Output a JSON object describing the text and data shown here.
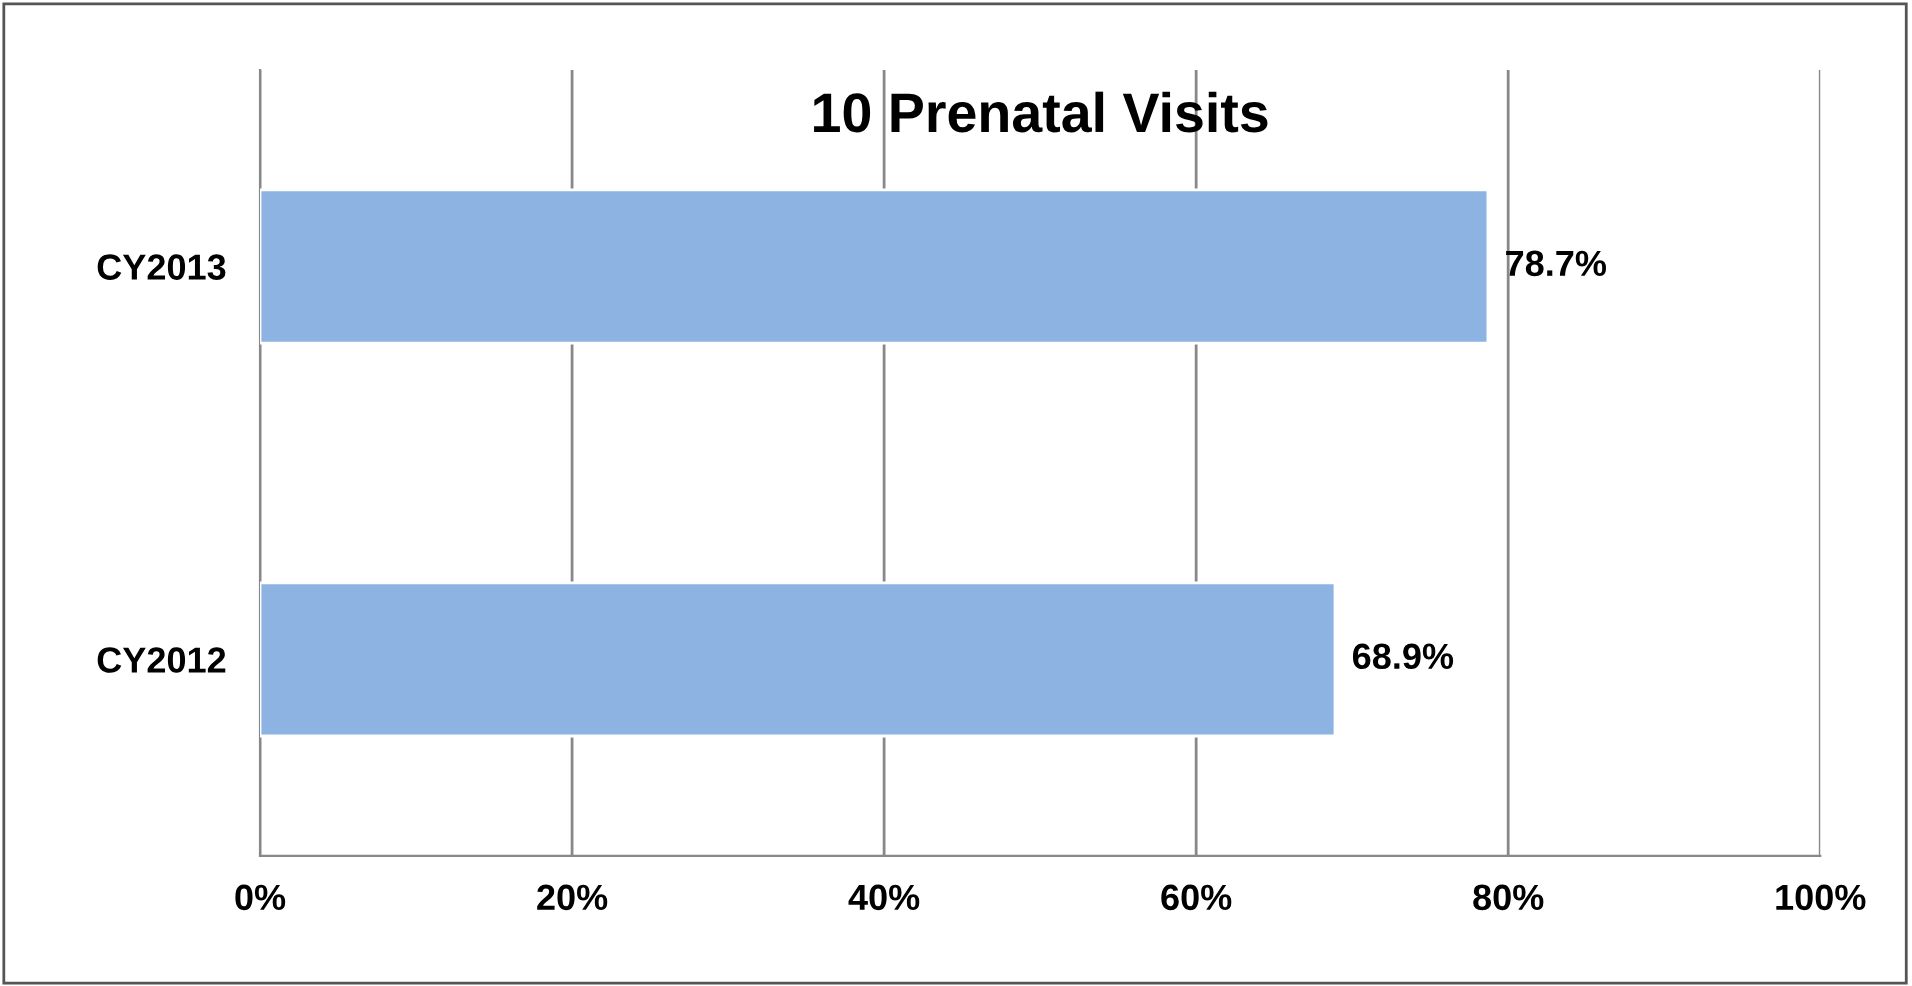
{
  "chart_data": {
    "type": "bar",
    "orientation": "horizontal",
    "title": "10 Prenatal Visits",
    "categories": [
      "CY2013",
      "CY2012"
    ],
    "values": [
      78.7,
      68.9
    ],
    "value_labels": [
      "78.7%",
      "68.9%"
    ],
    "color": "#8db3e2",
    "xlim": [
      0,
      100
    ],
    "xticks": [
      {
        "value": 0,
        "label": "0%"
      },
      {
        "value": 20,
        "label": "20%"
      },
      {
        "value": 40,
        "label": "40%"
      },
      {
        "value": 60,
        "label": "60%"
      },
      {
        "value": 80,
        "label": "80%"
      },
      {
        "value": 100,
        "label": "100%"
      }
    ],
    "grid": "x",
    "legend": false
  }
}
